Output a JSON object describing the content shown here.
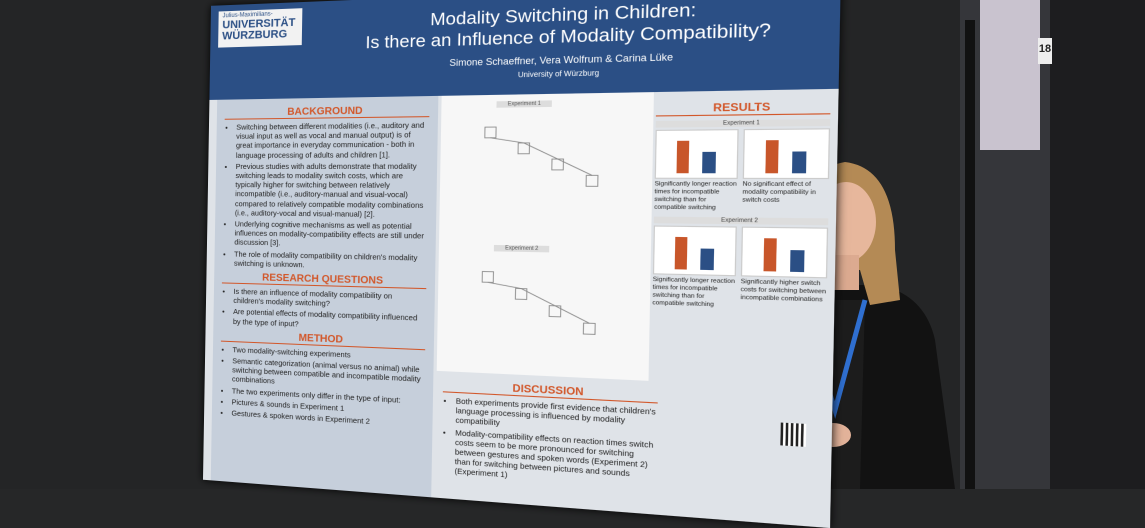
{
  "poster": {
    "logo": {
      "small": "Julius-Maximilians-",
      "line_1": "UNIVERSITÄT",
      "line_2": "WÜRZBURG"
    },
    "title": [
      "Modality Switching in Children:",
      "Is there an Influence of Modality Compatibility?"
    ],
    "authors": "Simone Schaeffner, Vera Wolfrum & Carina Lüke",
    "affiliation": "University of Würzburg",
    "sections": [
      {
        "heading": "BACKGROUND",
        "bullets": [
          "Switching between different modalities (i.e., auditory and visual input as well as vocal and manual output) is of great importance in everyday communication - both in language processing of adults and children [1].",
          "Previous studies with adults demonstrate that modality switching leads to modality switch costs, which are typically higher for switching between relatively incompatible (i.e., auditory-manual and visual-vocal) compared to relatively compatible modality combinations (i.e., auditory-vocal and visual-manual) [2].",
          "Underlying cognitive mechanisms as well as potential influences on modality-compatibility effects are still under discussion [3].",
          "The role of modality compatibility on children's modality switching is unknown."
        ]
      },
      {
        "heading": "RESEARCH QUESTIONS",
        "bullets": [
          "Is there an influence of modality compatibility on children's modality switching?",
          "Are potential effects of modality compatibility influenced by the type of input?"
        ]
      },
      {
        "heading": "METHOD",
        "bullets": [
          "Two modality-switching experiments",
          "Semantic categorization (animal versus no animal) while switching between compatible and incompatible modality combinations",
          "The two experiments only differ in the type of input:",
          "Pictures & sounds in Experiment 1",
          "Gestures & spoken words in Experiment 2"
        ]
      }
    ],
    "diagram_labels": [
      "Experiment 1",
      "Experiment 2"
    ],
    "results": {
      "heading": "RESULTS",
      "experiments": [
        {
          "label": "Experiment 1",
          "captions": [
            "Significantly longer reaction times for incompatible switching than for compatible switching",
            "No significant effect of modality compatibility in switch costs"
          ]
        },
        {
          "label": "Experiment 2",
          "captions": [
            "Significantly longer reaction times for incompatible switching than for compatible switching",
            "Significantly higher switch costs for switching between incompatible combinations"
          ]
        }
      ]
    },
    "discussion": {
      "heading": "DISCUSSION",
      "bullets": [
        "Both experiments provide first evidence that children's language processing is influenced by modality compatibility",
        "Modality-compatibility effects on reaction times switch costs seem to be more pronounced for switching between gestures and spoken words (Experiment 2) than for switching between pictures and sounds (Experiment 1)"
      ]
    }
  },
  "booth_number": "18"
}
